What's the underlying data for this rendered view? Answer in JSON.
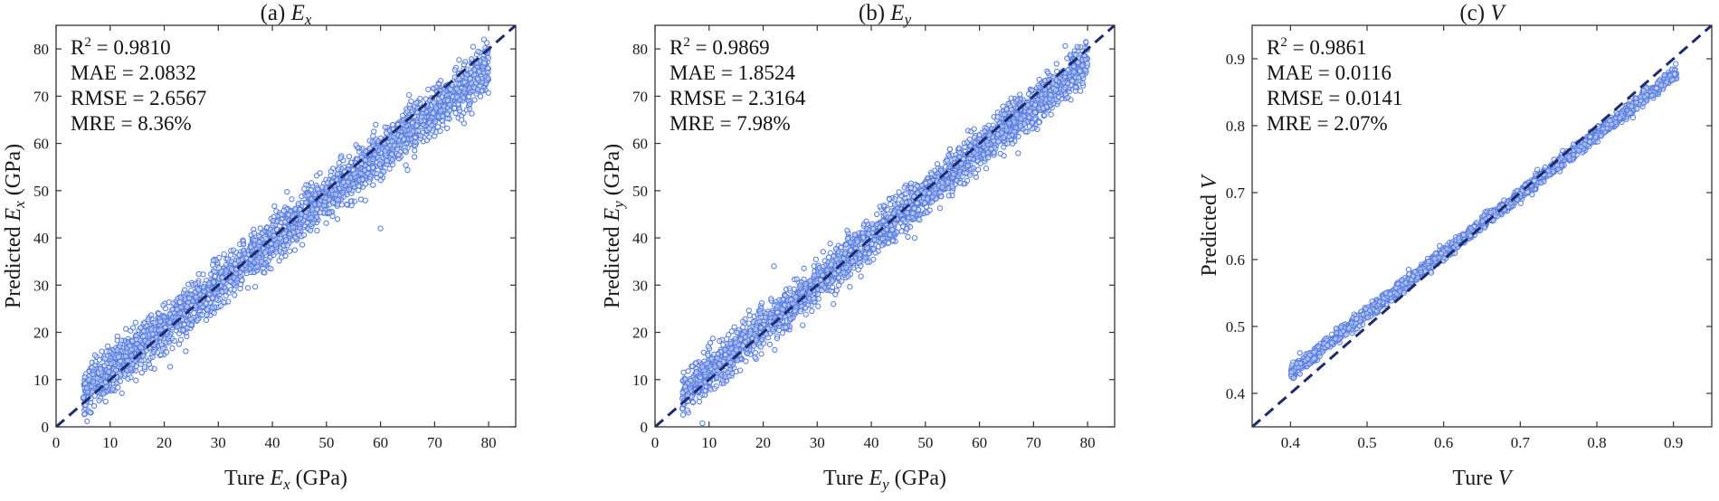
{
  "chart_data": [
    {
      "type": "scatter",
      "title_prefix": "(a) ",
      "title_var": "E",
      "title_sub": "x",
      "xlabel": {
        "pre": "Ture ",
        "var": "E",
        "sub": "x",
        "post": " (GPa)"
      },
      "ylabel": {
        "pre": "Predicted ",
        "var": "E",
        "sub": "x",
        "post": " (GPa)"
      },
      "xlim": [
        0,
        85
      ],
      "ylim": [
        0,
        85
      ],
      "xticks": [
        "0",
        "10",
        "20",
        "30",
        "40",
        "50",
        "60",
        "70",
        "80"
      ],
      "yticks": [
        "0",
        "10",
        "20",
        "30",
        "40",
        "50",
        "60",
        "70",
        "80"
      ],
      "tick_step": 10,
      "reference_line": "y = x",
      "stats": {
        "r2_label": "R",
        "r2_sup": "2",
        "r2_value": " = 0.9810",
        "mae": "MAE = 2.0832",
        "rmse": "RMSE = 2.6567",
        "mre": "MRE = 8.36%"
      },
      "point_cloud": {
        "x_range": [
          5,
          80
        ],
        "fit_slope": 0.92,
        "fit_intercept": 2.6,
        "spread_sd": 2.5,
        "count": 2600
      },
      "outliers": [
        {
          "x": 60,
          "y": 42
        },
        {
          "x": 75,
          "y": 65
        },
        {
          "x": 24,
          "y": 16
        }
      ]
    },
    {
      "type": "scatter",
      "title_prefix": "(b) ",
      "title_var": "E",
      "title_sub": "y",
      "xlabel": {
        "pre": "Ture ",
        "var": "E",
        "sub": "y",
        "post": " (GPa)"
      },
      "ylabel": {
        "pre": "Predicted ",
        "var": "E",
        "sub": "y",
        "post": " (GPa)"
      },
      "xlim": [
        0,
        85
      ],
      "ylim": [
        0,
        85
      ],
      "xticks": [
        "0",
        "10",
        "20",
        "30",
        "40",
        "50",
        "60",
        "70",
        "80"
      ],
      "yticks": [
        "0",
        "10",
        "20",
        "30",
        "40",
        "50",
        "60",
        "70",
        "80"
      ],
      "tick_step": 10,
      "reference_line": "y = x",
      "stats": {
        "r2_label": "R",
        "r2_sup": "2",
        "r2_value": " = 0.9869",
        "mae": "MAE = 1.8524",
        "rmse": "RMSE = 2.3164",
        "mre": "MRE = 7.98%"
      },
      "point_cloud": {
        "x_range": [
          5,
          80
        ],
        "fit_slope": 0.94,
        "fit_intercept": 2.2,
        "spread_sd": 2.2,
        "count": 2600
      },
      "outliers": [
        {
          "x": 33,
          "y": 26
        },
        {
          "x": 48,
          "y": 40
        },
        {
          "x": 22,
          "y": 34
        }
      ]
    },
    {
      "type": "scatter",
      "title_prefix": "(c) ",
      "title_var": "V",
      "title_sub": "",
      "xlabel": {
        "pre": "Ture ",
        "var": "V",
        "sub": "",
        "post": ""
      },
      "ylabel": {
        "pre": "Predicted ",
        "var": "V",
        "sub": "",
        "post": ""
      },
      "xlim": [
        0.35,
        0.95
      ],
      "ylim": [
        0.35,
        0.95
      ],
      "xticks": [
        "0.4",
        "0.5",
        "0.6",
        "0.7",
        "0.8",
        "0.9"
      ],
      "yticks": [
        "0.4",
        "0.5",
        "0.6",
        "0.7",
        "0.8",
        "0.9"
      ],
      "tick_step": 0.1,
      "reference_line": "y = x",
      "stats": {
        "r2_label": "R",
        "r2_sup": "2",
        "r2_value": " = 0.9861",
        "mae": "MAE = 0.0116",
        "rmse": "RMSE = 0.0141",
        "mre": "MRE = 2.07%"
      },
      "point_cloud": {
        "x_range": [
          0.4,
          0.905
        ],
        "fit_slope": 0.89,
        "fit_intercept": 0.075,
        "spread_sd": 0.005,
        "count": 2000
      },
      "outliers": []
    }
  ],
  "colors": {
    "marker": "#5a7fe0",
    "reference_line": "#1e2a6e",
    "axes": "#333333"
  }
}
